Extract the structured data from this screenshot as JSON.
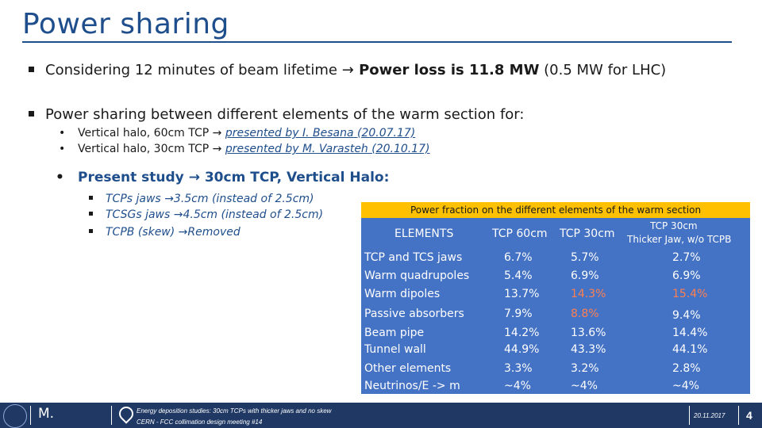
{
  "title": "Power sharing",
  "bullets": [
    {
      "prefix": "Considering 12 minutes of beam lifetime ",
      "arrow": "→",
      "bold": " Power loss is 11.8 MW",
      "suffix": " (0.5 MW for LHC)"
    },
    {
      "text": "Power sharing between different elements of the warm section for:"
    }
  ],
  "sub_bullets": [
    {
      "bullet": "•",
      "text": "Vertical halo, 60cm TCP ",
      "arrow": "→",
      "link": "presented by I. Besana (20.07.17)"
    },
    {
      "bullet": "•",
      "text": "Vertical halo, 30cm TCP ",
      "arrow": "→",
      "link": "presented by M. Varasteh (20.10.17)"
    }
  ],
  "present": {
    "bullet": "•",
    "text": "Present study ",
    "arrow": "→",
    "rest": " 30cm TCP, Vertical Halo:"
  },
  "changes": [
    {
      "text": "TCPs jaws ",
      "arrow": "→",
      "rest": "3.5cm (instead of 2.5cm)"
    },
    {
      "text": "TCSGs jaws ",
      "arrow": "→",
      "rest": "4.5cm (instead of 2.5cm)"
    },
    {
      "text": "TCPB (skew) ",
      "arrow": "→",
      "rest": "Removed"
    }
  ],
  "table": {
    "caption": "Power fraction on the different elements of the warm section",
    "headers": {
      "elements": "ELEMENTS",
      "col1": "TCP 60cm",
      "col2": "TCP 30cm",
      "col3_line1": "TCP 30cm",
      "col3_line2": "Thicker Jaw, w/o TCPB"
    },
    "rows": [
      {
        "name": "TCP and TCS jaws",
        "v1": "6.7%",
        "v2": "5.7%",
        "v3": "2.7%"
      },
      {
        "name": "Warm quadrupoles",
        "v1": "5.4%",
        "v2": "6.9%",
        "v3": "6.9%"
      },
      {
        "name": "Warm dipoles",
        "v1": "13.7%",
        "v2": "14.3%",
        "v3": "15.4%"
      },
      {
        "name": "Passive absorbers",
        "v1": "7.9%",
        "v2": "8.8%",
        "v3": "9.4%"
      },
      {
        "name": "Beam pipe",
        "v1": "14.2%",
        "v2": "13.6%",
        "v3": "14.4%"
      },
      {
        "name": "Tunnel wall",
        "v1": "44.9%",
        "v2": "43.3%",
        "v3": "44.1%"
      },
      {
        "name": "Other elements",
        "v1": "3.3%",
        "v2": "3.2%",
        "v3": "2.8%"
      },
      {
        "name": "Neutrinos/E -> m",
        "v1": "~4%",
        "v2": "~4%",
        "v3": "~4%"
      }
    ],
    "colors": {
      "background": "#4472c4",
      "caption_bg": "#ffc000",
      "highlight": "#ff7f50"
    }
  },
  "footer": {
    "initial": "M.",
    "line1": "Energy deposition studies: 30cm TCPs with thicker jaws and no skew",
    "line2": "CERN - FCC collimation design meeting #14",
    "date": "20.11.2017",
    "page": "4",
    "logo_icon": "cern-logo-icon",
    "pin_icon": "location-pin-icon"
  }
}
